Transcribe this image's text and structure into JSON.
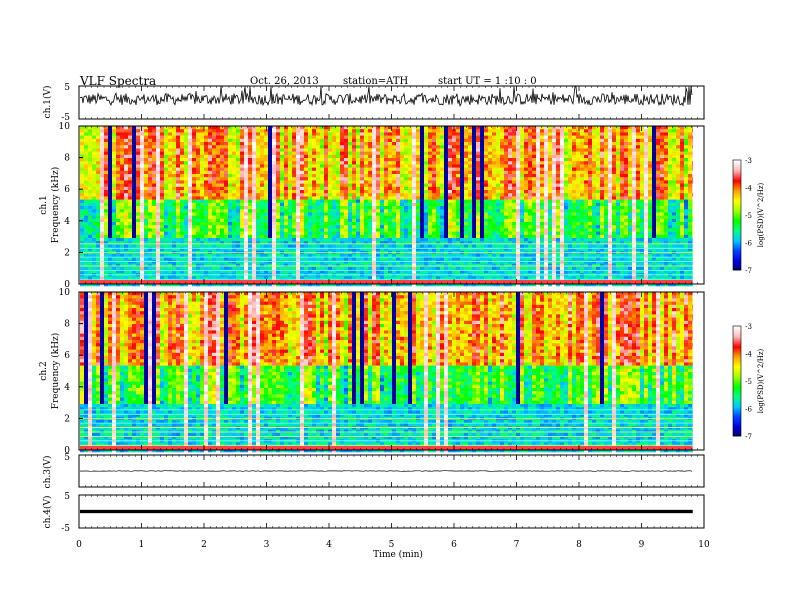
{
  "header": {
    "title": "VLF  Spectra",
    "date": "Oct. 26, 2013",
    "station": "station=ATH",
    "start": "start  UT  =   1  :10 : 0"
  },
  "chart_data": [
    {
      "type": "line",
      "name": "ch1-waveform",
      "ylabel": "ch.1(V)",
      "ylim": [
        -5,
        5
      ],
      "yticks": [
        5,
        -5
      ],
      "xlim": [
        0,
        10
      ],
      "x_end": 9.82,
      "approx_center": 1.0,
      "approx_amplitude": 3.5,
      "grid": false
    },
    {
      "type": "heatmap",
      "name": "ch1-spectrogram",
      "ylabel": "ch.1\nFrequency  (kHz)",
      "ylim": [
        0,
        10
      ],
      "yticks": [
        0,
        2,
        4,
        6,
        8,
        10
      ],
      "xlim": [
        0,
        10
      ],
      "x_end": 9.82,
      "colorbar": {
        "label": "log(PSD)(V^2/Hz)",
        "range": [
          -7,
          -3
        ],
        "ticks": [
          -3,
          -4,
          -5,
          -6,
          -7
        ]
      }
    },
    {
      "type": "heatmap",
      "name": "ch2-spectrogram",
      "ylabel": "ch.2\nFrequency  (kHz)",
      "ylim": [
        0,
        10
      ],
      "yticks": [
        0,
        2,
        4,
        6,
        8,
        10
      ],
      "xlim": [
        0,
        10
      ],
      "x_end": 9.82,
      "colorbar": {
        "label": "log(PSD)(V^2/Hz)",
        "range": [
          -7,
          -3
        ],
        "ticks": [
          -3,
          -4,
          -5,
          -6,
          -7
        ]
      }
    },
    {
      "type": "line",
      "name": "ch3-waveform",
      "ylabel": "ch.3(V)",
      "ylim": [
        -5,
        5
      ],
      "yticks": [
        5,
        -5
      ],
      "xlim": [
        0,
        10
      ],
      "x_end": 9.82,
      "approx_level": 0.0,
      "grid": false
    },
    {
      "type": "line",
      "name": "ch4-waveform",
      "ylabel": "ch.4(V)",
      "ylim": [
        -5,
        5
      ],
      "yticks": [
        5,
        -5
      ],
      "xlim": [
        0,
        10
      ],
      "x_end": 9.82,
      "approx_level": 0.0,
      "grid": false
    }
  ],
  "x_axis": {
    "label": "Time  (min)",
    "ticks": [
      0,
      1,
      2,
      3,
      4,
      5,
      6,
      7,
      8,
      9,
      10
    ]
  },
  "colors": {
    "colormap": [
      "#00005a",
      "#0000e6",
      "#0040ff",
      "#00c8ff",
      "#00ff80",
      "#00ff00",
      "#a0ff00",
      "#ffff00",
      "#ffa000",
      "#ff0000",
      "#ffb4b4",
      "#ffffff"
    ],
    "trace": "#000000"
  }
}
